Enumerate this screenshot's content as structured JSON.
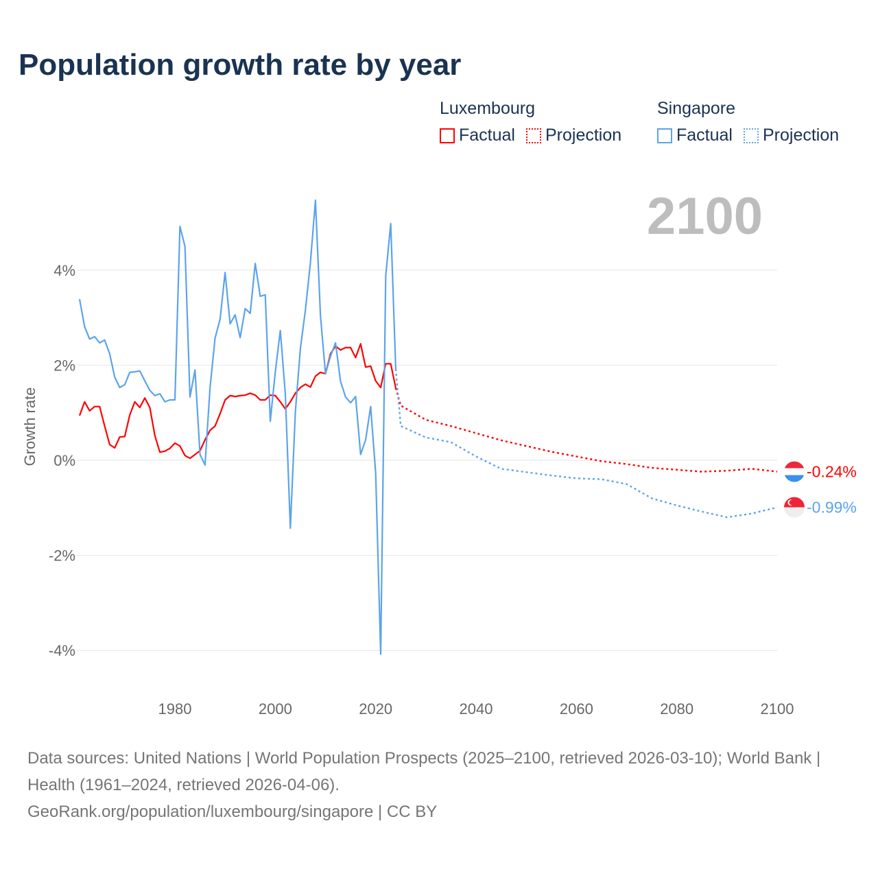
{
  "title": "Population growth rate by year",
  "legend": {
    "groups": [
      {
        "name": "Luxembourg",
        "factual": "Factual",
        "projection": "Projection",
        "color": "#ff0000"
      },
      {
        "name": "Singapore",
        "factual": "Factual",
        "projection": "Projection",
        "color": "#5ba3ec"
      }
    ]
  },
  "current_year": "2100",
  "footer": {
    "sources": "Data sources: United Nations | World Population Prospects (2025–2100, retrieved 2026-03-10); World Bank | Health (1961–2024, retrieved 2026-04-06).",
    "link": "GeoRank.org/population/luxembourg/singapore | CC BY"
  },
  "chart_data": {
    "type": "line",
    "title": "Population growth rate by year",
    "xlabel": "",
    "ylabel": "Growth rate",
    "xlim": [
      1961,
      2100
    ],
    "ylim": [
      -4.6,
      5.5
    ],
    "x_ticks": [
      1980,
      2000,
      2020,
      2040,
      2060,
      2080,
      2100
    ],
    "x_tick_labels": [
      "1980",
      "2000",
      "2020",
      "2040",
      "2060",
      "2080",
      "2100"
    ],
    "y_ticks": [
      4,
      2,
      0,
      -2,
      -4
    ],
    "y_tick_labels": [
      "4%",
      "2%",
      "0%",
      "-2%",
      "-4%"
    ],
    "grid": true,
    "series": [
      {
        "name": "Luxembourg",
        "color": "#ff0000",
        "end_label": "-0.24%",
        "factual_start": 1961,
        "factual": [
          0.94,
          1.23,
          1.04,
          1.13,
          1.13,
          0.72,
          0.33,
          0.26,
          0.49,
          0.5,
          0.95,
          1.23,
          1.11,
          1.31,
          1.11,
          0.52,
          0.17,
          0.19,
          0.25,
          0.36,
          0.3,
          0.1,
          0.04,
          0.12,
          0.2,
          0.43,
          0.63,
          0.72,
          0.98,
          1.27,
          1.36,
          1.34,
          1.36,
          1.37,
          1.41,
          1.37,
          1.27,
          1.27,
          1.37,
          1.36,
          1.23,
          1.08,
          1.23,
          1.41,
          1.53,
          1.6,
          1.54,
          1.77,
          1.85,
          1.82,
          2.24,
          2.4,
          2.32,
          2.37,
          2.37,
          2.16,
          2.45,
          1.96,
          1.98,
          1.67,
          1.53,
          2.03,
          2.03,
          1.52
        ],
        "projection_x": [
          2025,
          2030,
          2035,
          2040,
          2045,
          2050,
          2055,
          2060,
          2065,
          2070,
          2075,
          2080,
          2085,
          2090,
          2095,
          2100
        ],
        "projection": [
          1.15,
          0.85,
          0.72,
          0.57,
          0.42,
          0.3,
          0.18,
          0.08,
          -0.02,
          -0.08,
          -0.16,
          -0.2,
          -0.24,
          -0.22,
          -0.18,
          -0.24
        ]
      },
      {
        "name": "Singapore",
        "color": "#5ba3ec",
        "end_label": "-0.99%",
        "factual_start": 1961,
        "factual": [
          3.39,
          2.81,
          2.55,
          2.6,
          2.47,
          2.53,
          2.24,
          1.75,
          1.53,
          1.59,
          1.85,
          1.86,
          1.88,
          1.67,
          1.47,
          1.36,
          1.4,
          1.23,
          1.27,
          1.27,
          4.92,
          4.5,
          1.33,
          1.9,
          0.12,
          -0.1,
          1.53,
          2.57,
          2.97,
          3.95,
          2.87,
          3.06,
          2.58,
          3.19,
          3.09,
          4.14,
          3.45,
          3.48,
          0.82,
          1.86,
          2.73,
          1.39,
          -1.43,
          1.02,
          2.35,
          3.16,
          4.16,
          5.47,
          3.04,
          1.82,
          2.19,
          2.47,
          1.66,
          1.33,
          1.21,
          1.34,
          0.12,
          0.43,
          1.13,
          -0.27,
          -4.08,
          3.88,
          4.98,
          1.92
        ],
        "projection_x": [
          2025,
          2030,
          2035,
          2040,
          2045,
          2050,
          2055,
          2060,
          2065,
          2070,
          2075,
          2080,
          2085,
          2090,
          2095,
          2100
        ],
        "projection": [
          0.72,
          0.48,
          0.38,
          0.08,
          -0.18,
          -0.25,
          -0.32,
          -0.38,
          -0.4,
          -0.5,
          -0.8,
          -0.95,
          -1.08,
          -1.2,
          -1.12,
          -0.99
        ]
      }
    ]
  }
}
